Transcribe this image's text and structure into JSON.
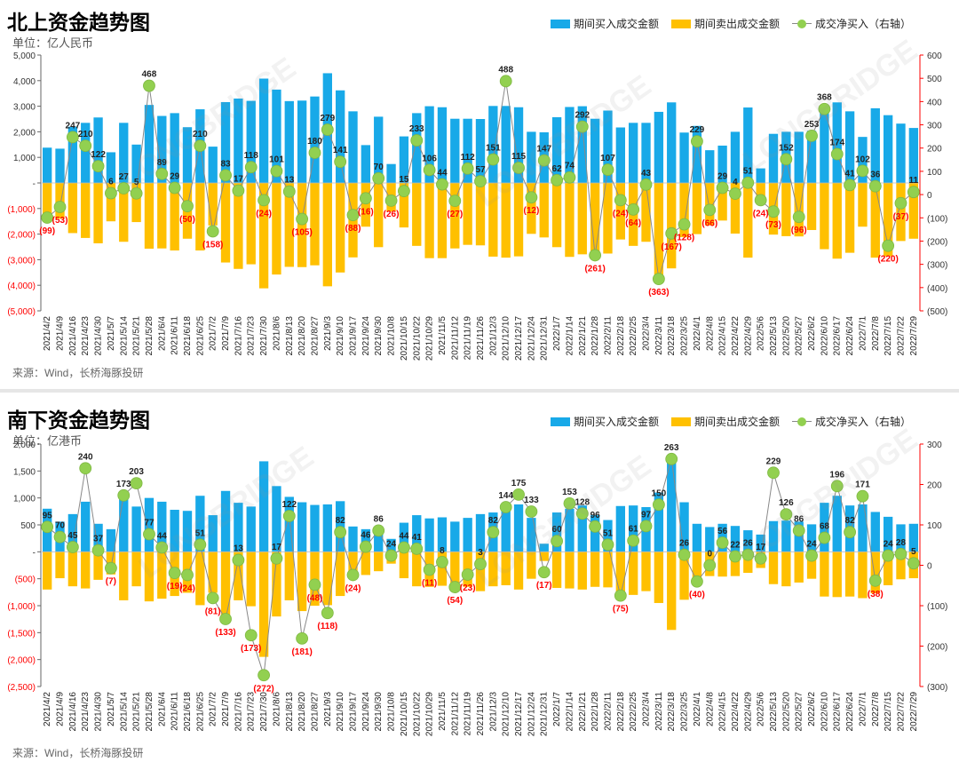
{
  "legend_labels": {
    "buy": "期间买入成交金额",
    "sell": "期间卖出成交金额",
    "net": "成交净买入（右轴）"
  },
  "colors": {
    "buy": "#18a9e8",
    "sell": "#ffc000",
    "net_marker": "#92d050",
    "net_line": "#888888",
    "neg_label": "#ff0000",
    "axis_right": "#ff0000"
  },
  "watermark": "LONGBRIDGE",
  "chart_data": [
    {
      "type": "bar",
      "title": "北上资金趋势图",
      "unit_label": "单位：亿人民币",
      "source": "来源：Wind，长桥海豚投研",
      "ylim": [
        -5000,
        5000
      ],
      "ytick_labels": [
        "5,000",
        "4,000",
        "3,000",
        "2,000",
        "1,000",
        "-",
        "(1,000)",
        "(2,000)",
        "(3,000)",
        "(4,000)",
        "(5,000)"
      ],
      "ytick_values": [
        5000,
        4000,
        3000,
        2000,
        1000,
        0,
        -1000,
        -2000,
        -3000,
        -4000,
        -5000
      ],
      "y2lim": [
        -500,
        600
      ],
      "y2tick_labels": [
        "600",
        "500",
        "400",
        "300",
        "200",
        "100",
        "0",
        "(100)",
        "(200)",
        "(300)",
        "(400)",
        "(500)"
      ],
      "y2tick_values": [
        600,
        500,
        400,
        300,
        200,
        100,
        0,
        -100,
        -200,
        -300,
        -400,
        -500
      ],
      "categories": [
        "2021/4/2",
        "2021/4/9",
        "2021/4/16",
        "2021/4/23",
        "2021/4/30",
        "2021/5/7",
        "2021/5/14",
        "2021/5/21",
        "2021/5/28",
        "2021/6/4",
        "2021/6/11",
        "2021/6/18",
        "2021/6/25",
        "2021/7/2",
        "2021/7/9",
        "2021/7/16",
        "2021/7/23",
        "2021/7/30",
        "2021/8/6",
        "2021/8/13",
        "2021/8/20",
        "2021/8/27",
        "2021/9/3",
        "2021/9/10",
        "2021/9/17",
        "2021/9/24",
        "2021/9/30",
        "2021/10/8",
        "2021/10/15",
        "2021/10/22",
        "2021/10/29",
        "2021/11/5",
        "2021/11/12",
        "2021/11/19",
        "2021/11/26",
        "2021/12/3",
        "2021/12/10",
        "2021/12/17",
        "2021/12/24",
        "2021/12/31",
        "2022/1/7",
        "2022/1/14",
        "2022/1/21",
        "2022/1/28",
        "2022/2/11",
        "2022/2/18",
        "2022/2/25",
        "2022/3/4",
        "2022/3/11",
        "2022/3/18",
        "2022/3/25",
        "2022/4/1",
        "2022/4/8",
        "2022/4/15",
        "2022/4/22",
        "2022/4/29",
        "2022/5/6",
        "2022/5/13",
        "2022/5/20",
        "2022/5/27",
        "2022/6/2",
        "2022/6/10",
        "2022/6/17",
        "2022/6/24",
        "2022/7/1",
        "2022/7/8",
        "2022/7/15",
        "2022/7/22",
        "2022/7/29"
      ],
      "series": [
        {
          "name": "期间买入成交金额",
          "values": [
            1380,
            1340,
            2200,
            2350,
            2560,
            1200,
            2350,
            1500,
            3050,
            2620,
            2730,
            2180,
            2880,
            1420,
            3160,
            3300,
            3210,
            4080,
            3650,
            3200,
            3220,
            3380,
            4290,
            3620,
            2800,
            1480,
            2590,
            740,
            1820,
            2730,
            3000,
            2960,
            2510,
            2510,
            2500,
            3010,
            3010,
            2960,
            2000,
            1980,
            2570,
            2970,
            3000,
            2510,
            2830,
            2170,
            2350,
            2350,
            2780,
            3150,
            1970,
            2230,
            1280,
            1460,
            2000,
            2950,
            570,
            1920,
            2000,
            2000,
            2040,
            2900,
            3150,
            2800,
            1800,
            2920,
            2650,
            2320,
            2150
          ]
        },
        {
          "name": "期间卖出成交金额",
          "values": [
            -1480,
            -1400,
            -1960,
            -2150,
            -2360,
            -1500,
            -2300,
            -1530,
            -2570,
            -2560,
            -2640,
            -2180,
            -2640,
            -1660,
            -3110,
            -3360,
            -3180,
            -4120,
            -3580,
            -3280,
            -3290,
            -3220,
            -4040,
            -3500,
            -2910,
            -1710,
            -2510,
            -1120,
            -1740,
            -2460,
            -2940,
            -2940,
            -2560,
            -2420,
            -2440,
            -2880,
            -2920,
            -2870,
            -1990,
            -2130,
            -2510,
            -2890,
            -2790,
            -2790,
            -2760,
            -2210,
            -2460,
            -2300,
            -3670,
            -3340,
            -2120,
            -2000,
            -1660,
            -1470,
            -1980,
            -2920,
            -620,
            -2020,
            -2080,
            -2090,
            -1840,
            -2590,
            -2960,
            -2730,
            -1710,
            -2920,
            -2870,
            -2270,
            -2180
          ]
        },
        {
          "name": "成交净买入（右轴）",
          "values": [
            -99,
            -53,
            247,
            210,
            122,
            6,
            27,
            5,
            468,
            89,
            29,
            -50,
            210,
            -158,
            83,
            17,
            118,
            -24,
            101,
            13,
            -105,
            180,
            279,
            141,
            -88,
            -16,
            70,
            -26,
            15,
            233,
            106,
            44,
            -27,
            112,
            57,
            151,
            488,
            115,
            -12,
            147,
            62,
            74,
            292,
            -261,
            107,
            -24,
            -64,
            43,
            -363,
            -167,
            -128,
            229,
            -66,
            29,
            4,
            51,
            -24,
            -73,
            152,
            -96,
            253,
            368,
            174,
            41,
            102,
            36,
            -220,
            -37,
            11
          ]
        }
      ]
    },
    {
      "type": "bar",
      "title": "南下资金趋势图",
      "unit_label": "单位：亿港币",
      "source": "来源：Wind，长桥海豚投研",
      "ylim": [
        -2500,
        2000
      ],
      "ytick_labels": [
        "2,000",
        "1,500",
        "1,000",
        "500",
        "-",
        "(500)",
        "(1,000)",
        "(1,500)",
        "(2,000)",
        "(2,500)"
      ],
      "ytick_values": [
        2000,
        1500,
        1000,
        500,
        0,
        -500,
        -1000,
        -1500,
        -2000,
        -2500
      ],
      "y2lim": [
        -300,
        300
      ],
      "y2tick_labels": [
        "300",
        "200",
        "100",
        "0",
        "(100)",
        "(200)",
        "(300)"
      ],
      "y2tick_values": [
        300,
        200,
        100,
        0,
        -100,
        -200,
        -300
      ],
      "categories": [
        "2021/4/2",
        "2021/4/9",
        "2021/4/16",
        "2021/4/23",
        "2021/4/30",
        "2021/5/7",
        "2021/5/14",
        "2021/5/21",
        "2021/5/28",
        "2021/6/4",
        "2021/6/11",
        "2021/6/18",
        "2021/6/25",
        "2021/7/2",
        "2021/7/9",
        "2021/7/16",
        "2021/7/23",
        "2021/7/30",
        "2021/8/6",
        "2021/8/13",
        "2021/8/20",
        "2021/8/27",
        "2021/9/3",
        "2021/9/10",
        "2021/9/17",
        "2021/9/24",
        "2021/9/30",
        "2021/10/8",
        "2021/10/15",
        "2021/10/22",
        "2021/10/29",
        "2021/11/5",
        "2021/11/12",
        "2021/11/19",
        "2021/11/26",
        "2021/12/3",
        "2021/12/10",
        "2021/12/17",
        "2021/12/24",
        "2021/12/31",
        "2022/1/7",
        "2022/1/14",
        "2022/1/21",
        "2022/1/28",
        "2022/2/11",
        "2022/2/18",
        "2022/2/25",
        "2022/3/4",
        "2022/3/11",
        "2022/3/18",
        "2022/3/25",
        "2022/4/1",
        "2022/4/8",
        "2022/4/15",
        "2022/4/22",
        "2022/4/29",
        "2022/5/6",
        "2022/5/13",
        "2022/5/20",
        "2022/5/27",
        "2022/6/2",
        "2022/6/10",
        "2022/6/17",
        "2022/6/24",
        "2022/7/1",
        "2022/7/8",
        "2022/7/15",
        "2022/7/22",
        "2022/7/29"
      ],
      "series": [
        {
          "name": "期间买入成交金额",
          "values": [
            800,
            560,
            700,
            930,
            520,
            420,
            1060,
            840,
            1000,
            930,
            780,
            760,
            1040,
            680,
            1130,
            910,
            840,
            1680,
            1220,
            1020,
            920,
            870,
            880,
            940,
            470,
            420,
            440,
            240,
            540,
            680,
            620,
            640,
            560,
            630,
            700,
            730,
            770,
            880,
            630,
            150,
            730,
            800,
            860,
            680,
            590,
            850,
            860,
            830,
            1100,
            1720,
            920,
            520,
            460,
            520,
            480,
            400,
            320,
            570,
            580,
            560,
            510,
            910,
            1040,
            860,
            880,
            740,
            650,
            510,
            520
          ]
        },
        {
          "name": "期间卖出成交金额",
          "values": [
            -700,
            -490,
            -640,
            -680,
            -520,
            -420,
            -900,
            -640,
            -920,
            -870,
            -820,
            -760,
            -990,
            -760,
            -1260,
            -900,
            -1010,
            -1950,
            -1200,
            -900,
            -1100,
            -1000,
            -990,
            -820,
            -500,
            -430,
            -360,
            -220,
            -490,
            -640,
            -650,
            -630,
            -610,
            -650,
            -730,
            -640,
            -620,
            -700,
            -500,
            -170,
            -670,
            -680,
            -700,
            -650,
            -660,
            -810,
            -800,
            -730,
            -950,
            -1450,
            -890,
            -560,
            -450,
            -460,
            -450,
            -390,
            -300,
            -600,
            -640,
            -570,
            -500,
            -830,
            -840,
            -830,
            -860,
            -770,
            -620,
            -510,
            -490
          ]
        },
        {
          "name": "成交净买入（右轴）",
          "values": [
            95,
            70,
            45,
            240,
            37,
            -7,
            173,
            203,
            77,
            44,
            -19,
            -24,
            51,
            -81,
            -133,
            13,
            -173,
            -272,
            17,
            122,
            -181,
            -48,
            -118,
            82,
            -24,
            46,
            86,
            24,
            44,
            41,
            -11,
            8,
            -54,
            -23,
            3,
            82,
            144,
            175,
            133,
            -17,
            60,
            153,
            128,
            96,
            51,
            -75,
            61,
            97,
            150,
            263,
            26,
            -40,
            0,
            56,
            22,
            26,
            17,
            229,
            126,
            86,
            24,
            68,
            196,
            82,
            171,
            -38,
            24,
            28,
            5
          ]
        }
      ]
    }
  ]
}
